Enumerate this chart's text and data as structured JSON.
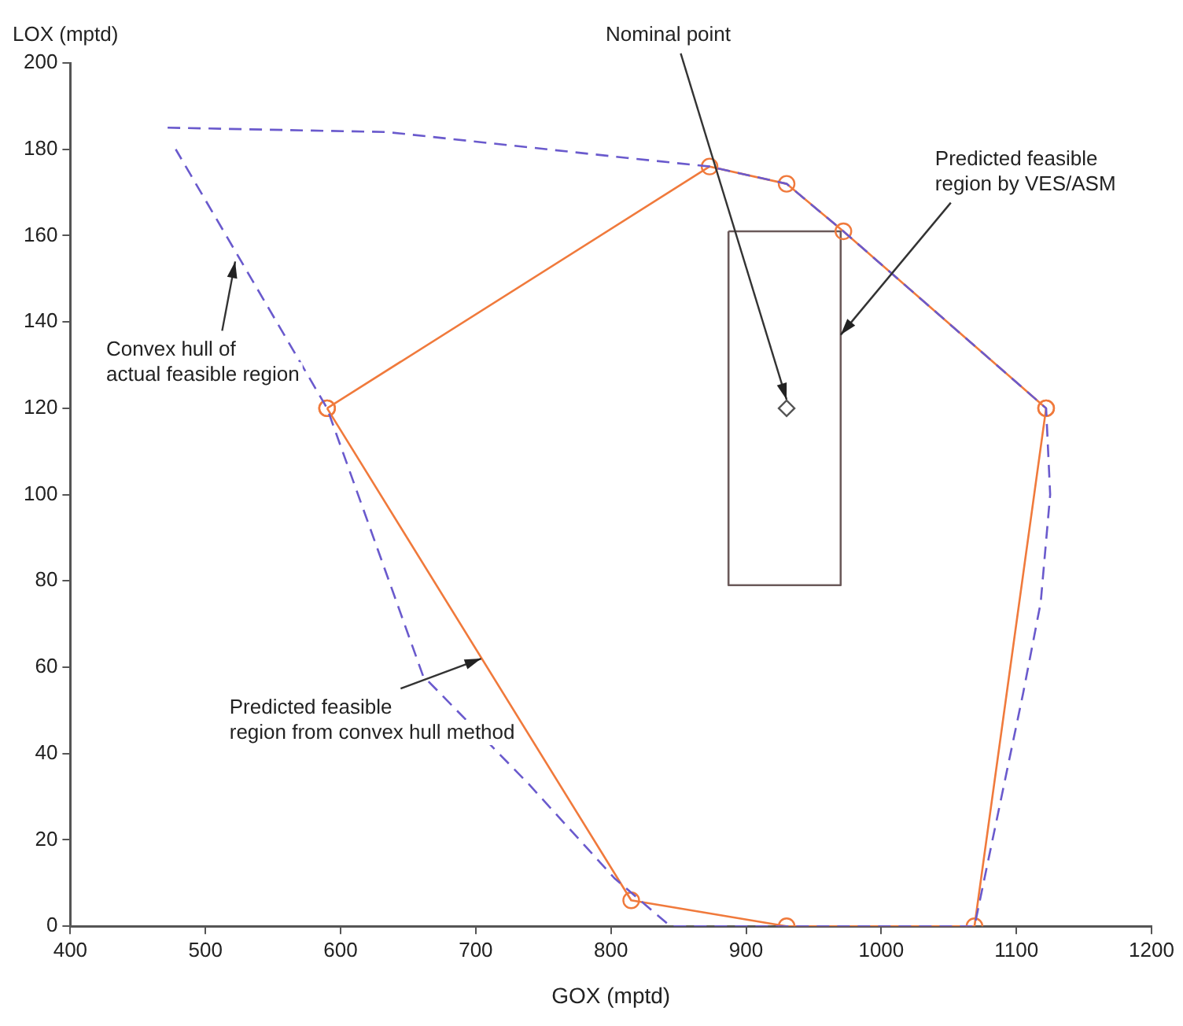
{
  "chart_data": {
    "type": "line",
    "xlabel": "GOX (mptd)",
    "ylabel": "LOX (mptd)",
    "xlim": [
      400,
      1200
    ],
    "xticks": [
      400,
      500,
      600,
      700,
      800,
      900,
      1000,
      1100,
      1200
    ],
    "ylim": [
      0,
      200
    ],
    "yticks": [
      0,
      20,
      40,
      60,
      80,
      100,
      120,
      140,
      160,
      180,
      200
    ],
    "grid": false,
    "legend": false,
    "series": [
      {
        "type": "line",
        "color": "#6a5acd",
        "line_style": "dashed",
        "marker": "none",
        "x": [
          472,
          634,
          812,
          873,
          930,
          972,
          1122,
          1125,
          1118,
          1105,
          1069,
          844,
          803,
          739,
          661,
          590,
          478
        ],
        "values": [
          185,
          184,
          178,
          176,
          172,
          161,
          120,
          100,
          75,
          54,
          0,
          0,
          11,
          33,
          58,
          120,
          180
        ]
      },
      {
        "type": "line",
        "color": "#f07a3c",
        "line_style": "solid",
        "marker": "circle",
        "x": [
          590,
          873,
          930,
          972,
          1122
        ],
        "values": [
          120,
          176,
          172,
          161,
          120
        ]
      },
      {
        "type": "line",
        "color": "#f07a3c",
        "line_style": "solid",
        "marker": "circle",
        "x": [
          1122,
          1069,
          930,
          815,
          590
        ],
        "values": [
          120,
          0,
          0,
          6,
          120
        ]
      },
      {
        "type": "line",
        "color": "#6b5a5a",
        "line_style": "solid",
        "marker": "none",
        "x": [
          887,
          970,
          970
        ],
        "values": [
          161,
          161,
          79
        ]
      },
      {
        "type": "line",
        "color": "#6b5a5a",
        "line_style": "solid",
        "marker": "none",
        "x": [
          970,
          887,
          887
        ],
        "values": [
          79,
          79,
          161
        ]
      },
      {
        "type": "scatter",
        "color": "#555555",
        "marker": "diamond",
        "x": [
          930
        ],
        "values": [
          120
        ]
      }
    ],
    "annotations": [
      {
        "text": "Nominal point",
        "x": 930,
        "y": 122
      },
      {
        "text": "Predicted feasible\nregion by VES/ASM",
        "x": 970,
        "y": 137
      },
      {
        "text": "Convex hull of\nactual feasible region",
        "x": 522,
        "y": 154
      },
      {
        "text": "Predicted feasible\nregion from convex hull method",
        "x": 704,
        "y": 62
      }
    ]
  }
}
